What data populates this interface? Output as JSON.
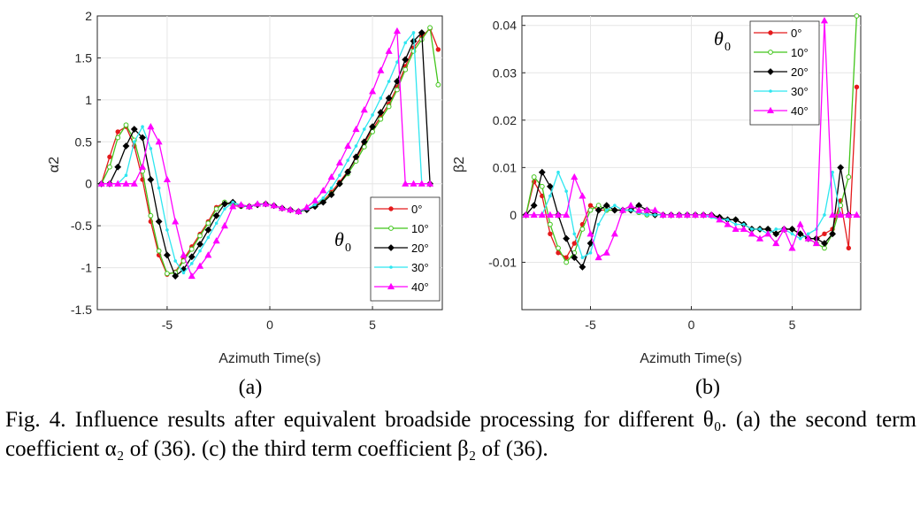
{
  "figure": {
    "panel_labels": [
      "(a)",
      "(b)"
    ],
    "caption": "Fig. 4. Influence results after equivalent broadside processing for different θ₀. (a) the second term coefficient α₂ of (36). (c) the third term coefficient β₂ of (36)."
  },
  "chart_data": [
    {
      "type": "line",
      "panel": "(a)",
      "xlabel": "Azimuth Time(s)",
      "ylabel": "α2",
      "xlim": [
        -8.4,
        8.4
      ],
      "ylim": [
        -1.5,
        2
      ],
      "xticks": [
        -5,
        0,
        5
      ],
      "yticks": [
        -1.5,
        -1,
        -0.5,
        0,
        0.5,
        1,
        1.5,
        2
      ],
      "xtick_labels": [
        "-5",
        "0",
        "5"
      ],
      "ytick_labels": [
        "-1.5",
        "-1",
        "-0.5",
        "0",
        "0.5",
        "1",
        "1.5",
        "2"
      ],
      "grid": true,
      "legend_title": "θ0",
      "legend_location": "lower-right",
      "series": [
        {
          "name": "0°",
          "color": "#e41a1c",
          "marker": "dot",
          "x": [
            -8.2,
            -7.8,
            -7.4,
            -7.0,
            -6.6,
            -6.2,
            -5.8,
            -5.4,
            -5.0,
            -4.6,
            -4.2,
            -3.8,
            -3.4,
            -3.0,
            -2.6,
            -2.2,
            -1.8,
            -1.4,
            -1.0,
            -0.6,
            -0.2,
            0.2,
            0.6,
            1.0,
            1.4,
            1.8,
            2.2,
            2.6,
            3.0,
            3.4,
            3.8,
            4.2,
            4.6,
            5.0,
            5.4,
            5.8,
            6.2,
            6.6,
            7.0,
            7.4,
            7.8,
            8.2
          ],
          "y": [
            0,
            0.32,
            0.62,
            0.68,
            0.45,
            0.05,
            -0.45,
            -0.85,
            -1.08,
            -1.05,
            -0.9,
            -0.75,
            -0.6,
            -0.45,
            -0.28,
            -0.22,
            -0.26,
            -0.27,
            -0.27,
            -0.25,
            -0.24,
            -0.26,
            -0.29,
            -0.31,
            -0.33,
            -0.3,
            -0.26,
            -0.2,
            -0.1,
            0.02,
            0.15,
            0.3,
            0.48,
            0.65,
            0.8,
            0.95,
            1.15,
            1.4,
            1.62,
            1.75,
            1.85,
            1.6
          ]
        },
        {
          "name": "10°",
          "color": "#41c51b",
          "marker": "circle",
          "x": [
            -8.2,
            -7.8,
            -7.4,
            -7.0,
            -6.6,
            -6.2,
            -5.8,
            -5.4,
            -5.0,
            -4.6,
            -4.2,
            -3.8,
            -3.4,
            -3.0,
            -2.6,
            -2.2,
            -1.8,
            -1.4,
            -1.0,
            -0.6,
            -0.2,
            0.2,
            0.6,
            1.0,
            1.4,
            1.8,
            2.2,
            2.6,
            3.0,
            3.4,
            3.8,
            4.2,
            4.6,
            5.0,
            5.4,
            5.8,
            6.2,
            6.6,
            7.0,
            7.4,
            7.8,
            8.2
          ],
          "y": [
            0,
            0.2,
            0.55,
            0.7,
            0.52,
            0.15,
            -0.38,
            -0.8,
            -1.07,
            -1.06,
            -0.92,
            -0.78,
            -0.62,
            -0.47,
            -0.3,
            -0.22,
            -0.25,
            -0.27,
            -0.27,
            -0.25,
            -0.24,
            -0.26,
            -0.29,
            -0.31,
            -0.33,
            -0.31,
            -0.27,
            -0.21,
            -0.12,
            0.0,
            0.12,
            0.27,
            0.44,
            0.62,
            0.77,
            0.92,
            1.12,
            1.36,
            1.58,
            1.72,
            1.86,
            1.18
          ]
        },
        {
          "name": "20°",
          "color": "#000000",
          "marker": "diamond",
          "x": [
            -8.2,
            -7.8,
            -7.4,
            -7.0,
            -6.6,
            -6.2,
            -5.8,
            -5.4,
            -5.0,
            -4.6,
            -4.2,
            -3.8,
            -3.4,
            -3.0,
            -2.6,
            -2.2,
            -1.8,
            -1.4,
            -1.0,
            -0.6,
            -0.2,
            0.2,
            0.6,
            1.0,
            1.4,
            1.8,
            2.2,
            2.6,
            3.0,
            3.4,
            3.8,
            4.2,
            4.6,
            5.0,
            5.4,
            5.8,
            6.2,
            6.6,
            7.0,
            7.4,
            7.8
          ],
          "y": [
            0,
            0,
            0.2,
            0.45,
            0.65,
            0.55,
            0.05,
            -0.45,
            -0.85,
            -1.1,
            -1.02,
            -0.87,
            -0.72,
            -0.55,
            -0.38,
            -0.24,
            -0.22,
            -0.26,
            -0.27,
            -0.25,
            -0.24,
            -0.26,
            -0.29,
            -0.31,
            -0.33,
            -0.31,
            -0.27,
            -0.22,
            -0.13,
            0.0,
            0.14,
            0.32,
            0.5,
            0.68,
            0.85,
            1.02,
            1.22,
            1.48,
            1.7,
            1.8,
            0
          ]
        },
        {
          "name": "30°",
          "color": "#2ee6f0",
          "marker": "point",
          "x": [
            -8.2,
            -7.8,
            -7.4,
            -7.0,
            -6.6,
            -6.2,
            -5.8,
            -5.4,
            -5.0,
            -4.6,
            -4.2,
            -3.8,
            -3.4,
            -3.0,
            -2.6,
            -2.2,
            -1.8,
            -1.4,
            -1.0,
            -0.6,
            -0.2,
            0.2,
            0.6,
            1.0,
            1.4,
            1.8,
            2.2,
            2.6,
            3.0,
            3.4,
            3.8,
            4.2,
            4.6,
            5.0,
            5.4,
            5.8,
            6.2,
            6.6,
            7.0,
            7.4,
            7.8
          ],
          "y": [
            0,
            0,
            0,
            0.1,
            0.5,
            0.68,
            0.42,
            -0.05,
            -0.55,
            -0.92,
            -1.06,
            -0.95,
            -0.8,
            -0.64,
            -0.47,
            -0.3,
            -0.22,
            -0.26,
            -0.27,
            -0.25,
            -0.24,
            -0.26,
            -0.29,
            -0.31,
            -0.33,
            -0.3,
            -0.25,
            -0.17,
            -0.05,
            0.1,
            0.28,
            0.45,
            0.65,
            0.82,
            1.02,
            1.22,
            1.45,
            1.68,
            1.8,
            0,
            0
          ]
        },
        {
          "name": "40°",
          "color": "#ff00ff",
          "marker": "triangle",
          "x": [
            -8.2,
            -7.8,
            -7.4,
            -7.0,
            -6.6,
            -6.2,
            -5.8,
            -5.4,
            -5.0,
            -4.6,
            -4.2,
            -3.8,
            -3.4,
            -3.0,
            -2.6,
            -2.2,
            -1.8,
            -1.4,
            -1.0,
            -0.6,
            -0.2,
            0.2,
            0.6,
            1.0,
            1.4,
            1.8,
            2.2,
            2.6,
            3.0,
            3.4,
            3.8,
            4.2,
            4.6,
            5.0,
            5.4,
            5.8,
            6.2,
            6.6,
            7.0,
            7.4,
            7.8
          ],
          "y": [
            0,
            0,
            0,
            0,
            0,
            0.2,
            0.68,
            0.5,
            0.05,
            -0.45,
            -0.85,
            -1.1,
            -0.98,
            -0.85,
            -0.68,
            -0.5,
            -0.27,
            -0.25,
            -0.27,
            -0.24,
            -0.24,
            -0.26,
            -0.29,
            -0.31,
            -0.33,
            -0.28,
            -0.2,
            -0.08,
            0.08,
            0.25,
            0.45,
            0.65,
            0.88,
            1.1,
            1.35,
            1.58,
            1.82,
            0,
            0,
            0,
            0
          ]
        }
      ]
    },
    {
      "type": "line",
      "panel": "(b)",
      "xlabel": "Azimuth Time(s)",
      "ylabel": "β2",
      "xlim": [
        -8.4,
        8.4
      ],
      "ylim": [
        -0.02,
        0.042
      ],
      "xticks": [
        -5,
        0,
        5
      ],
      "yticks": [
        -0.01,
        0,
        0.01,
        0.02,
        0.03,
        0.04
      ],
      "xtick_labels": [
        "-5",
        "0",
        "5"
      ],
      "ytick_labels": [
        "-0.01",
        "0",
        "0.01",
        "0.02",
        "0.03",
        "0.04"
      ],
      "grid": true,
      "legend_title": "θ0",
      "legend_location": "top-right",
      "series": [
        {
          "name": "0°",
          "color": "#e41a1c",
          "marker": "dot",
          "x": [
            -8.2,
            -7.8,
            -7.4,
            -7.0,
            -6.6,
            -6.2,
            -5.8,
            -5.4,
            -5.0,
            -4.6,
            -4.2,
            -3.8,
            -3.4,
            -3.0,
            -2.6,
            -2.2,
            -1.8,
            -1.4,
            -1.0,
            -0.6,
            -0.2,
            0.2,
            0.6,
            1.0,
            1.4,
            1.8,
            2.2,
            2.6,
            3.0,
            3.4,
            3.8,
            4.2,
            4.6,
            5.0,
            5.4,
            5.8,
            6.2,
            6.6,
            7.0,
            7.4,
            7.8,
            8.2
          ],
          "y": [
            0,
            0.007,
            0.004,
            -0.004,
            -0.008,
            -0.009,
            -0.006,
            -0.002,
            0.002,
            0.001,
            0.001,
            0.001,
            0.001,
            0.001,
            0.0005,
            0,
            0,
            0,
            0,
            0,
            0,
            0,
            0,
            0,
            -0.0005,
            -0.001,
            -0.001,
            -0.002,
            -0.003,
            -0.003,
            -0.003,
            -0.004,
            -0.003,
            -0.003,
            -0.004,
            -0.005,
            -0.005,
            -0.004,
            -0.003,
            0.003,
            -0.007,
            0.027
          ]
        },
        {
          "name": "10°",
          "color": "#41c51b",
          "marker": "circle",
          "x": [
            -8.2,
            -7.8,
            -7.4,
            -7.0,
            -6.6,
            -6.2,
            -5.8,
            -5.4,
            -5.0,
            -4.6,
            -4.2,
            -3.8,
            -3.4,
            -3.0,
            -2.6,
            -2.2,
            -1.8,
            -1.4,
            -1.0,
            -0.6,
            -0.2,
            0.2,
            0.6,
            1.0,
            1.4,
            1.8,
            2.2,
            2.6,
            3.0,
            3.4,
            3.8,
            4.2,
            4.6,
            5.0,
            5.4,
            5.8,
            6.2,
            6.6,
            7.0,
            7.4,
            7.8,
            8.2
          ],
          "y": [
            0,
            0.008,
            0.006,
            -0.002,
            -0.007,
            -0.01,
            -0.008,
            -0.003,
            0.001,
            0.002,
            0.001,
            0.001,
            0.001,
            0.001,
            0.0005,
            0,
            0,
            0,
            0,
            0,
            0,
            0,
            0,
            0,
            -0.0005,
            -0.001,
            -0.001,
            -0.002,
            -0.003,
            -0.003,
            -0.003,
            -0.004,
            -0.003,
            -0.003,
            -0.004,
            -0.005,
            -0.006,
            -0.007,
            -0.004,
            0.002,
            0.008,
            0.042
          ]
        },
        {
          "name": "20°",
          "color": "#000000",
          "marker": "diamond",
          "x": [
            -8.2,
            -7.8,
            -7.4,
            -7.0,
            -6.6,
            -6.2,
            -5.8,
            -5.4,
            -5.0,
            -4.6,
            -4.2,
            -3.8,
            -3.4,
            -3.0,
            -2.6,
            -2.2,
            -1.8,
            -1.4,
            -1.0,
            -0.6,
            -0.2,
            0.2,
            0.6,
            1.0,
            1.4,
            1.8,
            2.2,
            2.6,
            3.0,
            3.4,
            3.8,
            4.2,
            4.6,
            5.0,
            5.4,
            5.8,
            6.2,
            6.6,
            7.0,
            7.4,
            7.8
          ],
          "y": [
            0,
            0.002,
            0.009,
            0.006,
            0,
            -0.005,
            -0.009,
            -0.011,
            -0.006,
            0.001,
            0.002,
            0.001,
            0.001,
            0.001,
            0.002,
            0.001,
            0,
            0,
            0,
            0,
            0,
            0,
            0,
            0,
            -0.0005,
            -0.001,
            -0.001,
            -0.002,
            -0.003,
            -0.003,
            -0.003,
            -0.004,
            -0.003,
            -0.003,
            -0.004,
            -0.005,
            -0.005,
            -0.006,
            -0.004,
            0.01,
            0.0
          ]
        },
        {
          "name": "30°",
          "color": "#2ee6f0",
          "marker": "point",
          "x": [
            -8.2,
            -7.8,
            -7.4,
            -7.0,
            -6.6,
            -6.2,
            -5.8,
            -5.4,
            -5.0,
            -4.6,
            -4.2,
            -3.8,
            -3.4,
            -3.0,
            -2.6,
            -2.2,
            -1.8,
            -1.4,
            -1.0,
            -0.6,
            -0.2,
            0.2,
            0.6,
            1.0,
            1.4,
            1.8,
            2.2,
            2.6,
            3.0,
            3.4,
            3.8,
            4.2,
            4.6,
            5.0,
            5.4,
            5.8,
            6.2,
            6.6,
            7.0,
            7.4,
            7.8
          ],
          "y": [
            0,
            0,
            0,
            0.004,
            0.009,
            0.005,
            -0.004,
            -0.009,
            -0.008,
            -0.002,
            0.001,
            0.002,
            0.001,
            0.001,
            0.0005,
            0,
            0,
            0,
            0,
            0,
            0,
            0,
            0,
            -0.0005,
            -0.001,
            -0.001,
            -0.002,
            -0.002,
            -0.003,
            -0.003,
            -0.004,
            -0.003,
            -0.003,
            -0.004,
            -0.005,
            -0.004,
            -0.003,
            0.0,
            0.009,
            0.0,
            0.0
          ]
        },
        {
          "name": "40°",
          "color": "#ff00ff",
          "marker": "triangle",
          "x": [
            -8.2,
            -7.8,
            -7.4,
            -7.0,
            -6.6,
            -6.2,
            -5.8,
            -5.4,
            -5.0,
            -4.6,
            -4.2,
            -3.8,
            -3.4,
            -3.0,
            -2.6,
            -2.2,
            -1.8,
            -1.4,
            -1.0,
            -0.6,
            -0.2,
            0.2,
            0.6,
            1.0,
            1.4,
            1.8,
            2.2,
            2.6,
            3.0,
            3.4,
            3.8,
            4.2,
            4.6,
            5.0,
            5.4,
            5.8,
            6.2,
            6.6,
            7.0,
            7.4,
            7.8,
            8.2
          ],
          "y": [
            0,
            0,
            0,
            0,
            0,
            0,
            0.008,
            0.004,
            -0.004,
            -0.009,
            -0.008,
            -0.004,
            0.001,
            0.002,
            0.001,
            0.001,
            0.001,
            0,
            0,
            0,
            0,
            0,
            0,
            0,
            -0.001,
            -0.002,
            -0.003,
            -0.003,
            -0.004,
            -0.005,
            -0.004,
            -0.006,
            -0.003,
            -0.007,
            -0.002,
            -0.005,
            -0.006,
            0.041,
            0.0,
            0.0,
            0.0,
            0.0
          ]
        }
      ]
    }
  ]
}
